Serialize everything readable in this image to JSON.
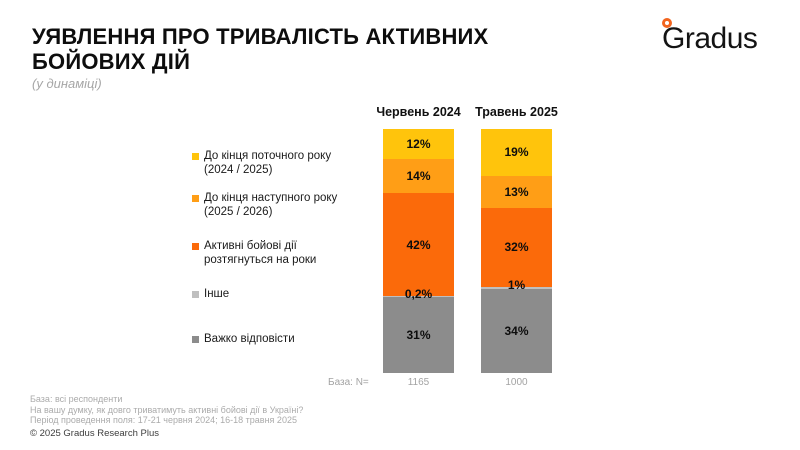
{
  "header": {
    "title_line1": "УЯВЛЕННЯ ПРО ТРИВАЛІСТЬ АКТИВНИХ",
    "title_line2": "БОЙОВИХ ДІЙ",
    "subtitle": "(у динаміці)",
    "logo_text": "Gradus",
    "logo_dot_color": "#f2641e"
  },
  "chart_data": {
    "type": "bar",
    "stacked": true,
    "orientation": "vertical",
    "categories": [
      "Червень 2024",
      "Травень 2025"
    ],
    "series": [
      {
        "name": "До кінця поточного року (2024 / 2025)",
        "color": "#FFC40C",
        "values": [
          12,
          19
        ],
        "labels": [
          "12%",
          "19%"
        ]
      },
      {
        "name": "До кінця наступного року (2025 / 2026)",
        "color": "#FF9E16",
        "values": [
          14,
          13
        ],
        "labels": [
          "14%",
          "13%"
        ]
      },
      {
        "name": "Активні бойові дії розтягнуться на роки",
        "color": "#FB6A0A",
        "values": [
          42,
          32
        ],
        "labels": [
          "42%",
          "32%"
        ]
      },
      {
        "name": "Інше",
        "color": "#BFBFBF",
        "values": [
          0.2,
          1
        ],
        "labels": [
          "0,2%",
          "1%"
        ]
      },
      {
        "name": "Важко відповісти",
        "color": "#8C8C8C",
        "values": [
          31,
          34
        ],
        "labels": [
          "31%",
          "34%"
        ]
      }
    ],
    "value_suffix": "%",
    "legend_position": "left",
    "grid": false,
    "base_label": "База: N=",
    "base_values": [
      "1165",
      "1000"
    ]
  },
  "legend": {
    "items": [
      {
        "lines": [
          "До кінця поточного року",
          "(2024 / 2025)"
        ],
        "color": "#FFC40C"
      },
      {
        "lines": [
          "До кінця наступного року",
          "(2025 / 2026)"
        ],
        "color": "#FF9E16"
      },
      {
        "lines": [
          "Активні бойові дії",
          "розтягнуться на роки"
        ],
        "color": "#FB6A0A"
      },
      {
        "lines": [
          "Інше"
        ],
        "color": "#BFBFBF"
      },
      {
        "lines": [
          "Важко відповісти"
        ],
        "color": "#8C8C8C"
      }
    ]
  },
  "footer": {
    "line1": "База: всі респонденти",
    "line2": "На вашу думку, як довго триватимуть активні бойові дії в Україні?",
    "line3": "Період проведення поля: 17-21 червня 2024; 16-18 травня 2025",
    "copyright": "© 2025 Gradus Research Plus"
  }
}
